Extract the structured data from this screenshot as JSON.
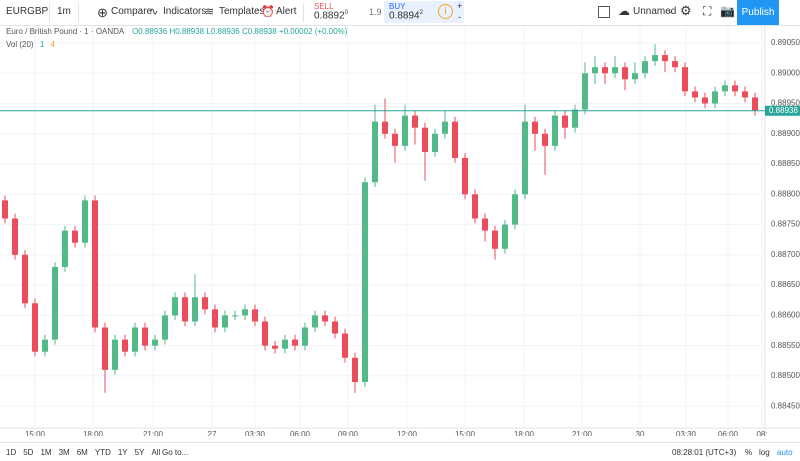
{
  "toolbar": {
    "symbol": "EURGBP",
    "interval": "1m",
    "compare": "Compare",
    "indicators": "Indicators",
    "templates": "Templates",
    "alert": "Alert",
    "sell_label": "SELL",
    "sell_price": "0.8892",
    "sell_sup": "0",
    "spread": "1.9",
    "buy_label": "BUY",
    "buy_price": "0.8894",
    "buy_sup": "2",
    "layout_name": "Unnamed",
    "publish": "Publish"
  },
  "legend": {
    "title": "Euro / British Pound · 1 · OANDA",
    "open": "O0.88936",
    "high": "H0.88938",
    "low": "L0.88936",
    "close": "C0.88938",
    "change": "+0.00002 (+0.00%)",
    "volume_label": "Vol (20)",
    "vol_a": "1",
    "vol_b": "4"
  },
  "footer": {
    "ranges": [
      "1D",
      "5D",
      "1M",
      "3M",
      "6M",
      "YTD",
      "1Y",
      "5Y",
      "All"
    ],
    "goto": "Go to...",
    "clock": "08:28:01 (UTC+3)",
    "percent": "%",
    "log": "log",
    "auto": "auto"
  },
  "chart_data": {
    "type": "candlestick",
    "up_color": "#53b987",
    "down_color": "#eb4d5c",
    "grid": true,
    "last_price": 0.88938,
    "last_color": "#26a69a",
    "ylim": [
      0.88414,
      0.89078
    ],
    "yticks": [
      {
        "value": 0.8845,
        "label": "0.88450"
      },
      {
        "value": 0.885,
        "label": "0.88500"
      },
      {
        "value": 0.8855,
        "label": "0.88550"
      },
      {
        "value": 0.886,
        "label": "0.88600"
      },
      {
        "value": 0.8865,
        "label": "0.88650"
      },
      {
        "value": 0.887,
        "label": "0.88700"
      },
      {
        "value": 0.8875,
        "label": "0.88750"
      },
      {
        "value": 0.888,
        "label": "0.88800"
      },
      {
        "value": 0.8885,
        "label": "0.88850"
      },
      {
        "value": 0.889,
        "label": "0.88900"
      },
      {
        "value": 0.8895,
        "label": "0.88950"
      },
      {
        "value": 0.89,
        "label": "0.89000"
      },
      {
        "value": 0.8905,
        "label": "0.89050"
      }
    ],
    "xlim": [
      -0.5,
      76
    ],
    "xticks": [
      {
        "value": 3,
        "label": "15:00"
      },
      {
        "value": 8.8,
        "label": "18:00"
      },
      {
        "value": 14.8,
        "label": "21:00"
      },
      {
        "value": 20.7,
        "label": "27"
      },
      {
        "value": 25,
        "label": "03:30"
      },
      {
        "value": 29.5,
        "label": "06:00"
      },
      {
        "value": 34.3,
        "label": "09:00"
      },
      {
        "value": 40.2,
        "label": "12:00"
      },
      {
        "value": 46,
        "label": "15:00"
      },
      {
        "value": 51.9,
        "label": "18:00"
      },
      {
        "value": 57.7,
        "label": "21:00"
      },
      {
        "value": 63.5,
        "label": "30"
      },
      {
        "value": 68.1,
        "label": "03:30"
      },
      {
        "value": 72.3,
        "label": "06:00"
      },
      {
        "value": 75.7,
        "label": "08:"
      }
    ],
    "candles": [
      [
        0.8879,
        0.88798,
        0.88752,
        0.8876
      ],
      [
        0.8876,
        0.88768,
        0.88692,
        0.887
      ],
      [
        0.887,
        0.88708,
        0.88612,
        0.8862
      ],
      [
        0.8862,
        0.88628,
        0.88532,
        0.8854
      ],
      [
        0.8854,
        0.88568,
        0.88532,
        0.8856
      ],
      [
        0.8856,
        0.88688,
        0.88552,
        0.8868
      ],
      [
        0.8868,
        0.88748,
        0.88672,
        0.8874
      ],
      [
        0.8874,
        0.88748,
        0.88712,
        0.8872
      ],
      [
        0.8872,
        0.88798,
        0.88712,
        0.8879
      ],
      [
        0.8879,
        0.88798,
        0.88572,
        0.8858
      ],
      [
        0.8858,
        0.88588,
        0.88472,
        0.8851
      ],
      [
        0.8851,
        0.88568,
        0.88502,
        0.8856
      ],
      [
        0.8856,
        0.88568,
        0.88532,
        0.8854
      ],
      [
        0.8854,
        0.88588,
        0.88532,
        0.8858
      ],
      [
        0.8858,
        0.88588,
        0.88542,
        0.8855
      ],
      [
        0.8855,
        0.88568,
        0.88542,
        0.8856
      ],
      [
        0.8856,
        0.88608,
        0.88552,
        0.886
      ],
      [
        0.886,
        0.88638,
        0.88592,
        0.8863
      ],
      [
        0.8863,
        0.88638,
        0.88582,
        0.8859
      ],
      [
        0.8859,
        0.88668,
        0.88582,
        0.8863
      ],
      [
        0.8863,
        0.88638,
        0.88602,
        0.8861
      ],
      [
        0.8861,
        0.88618,
        0.88572,
        0.8858
      ],
      [
        0.8858,
        0.88608,
        0.88572,
        0.886
      ],
      [
        0.886,
        0.88608,
        0.88592,
        0.886
      ],
      [
        0.886,
        0.88618,
        0.88592,
        0.8861
      ],
      [
        0.8861,
        0.88618,
        0.88582,
        0.8859
      ],
      [
        0.8859,
        0.88598,
        0.88542,
        0.8855
      ],
      [
        0.8855,
        0.88558,
        0.88537,
        0.88545
      ],
      [
        0.88545,
        0.88568,
        0.88537,
        0.8856
      ],
      [
        0.8856,
        0.88568,
        0.88542,
        0.8855
      ],
      [
        0.8855,
        0.88588,
        0.88542,
        0.8858
      ],
      [
        0.8858,
        0.88608,
        0.88572,
        0.886
      ],
      [
        0.886,
        0.88608,
        0.88582,
        0.8859
      ],
      [
        0.8859,
        0.88598,
        0.88562,
        0.8857
      ],
      [
        0.8857,
        0.88578,
        0.88522,
        0.8853
      ],
      [
        0.8853,
        0.88538,
        0.88472,
        0.8849
      ],
      [
        0.8849,
        0.88828,
        0.88482,
        0.8882
      ],
      [
        0.8882,
        0.88948,
        0.88812,
        0.8892
      ],
      [
        0.8892,
        0.88958,
        0.88892,
        0.889
      ],
      [
        0.889,
        0.88908,
        0.88852,
        0.8888
      ],
      [
        0.8888,
        0.88948,
        0.88872,
        0.8893
      ],
      [
        0.8893,
        0.88938,
        0.88882,
        0.8891
      ],
      [
        0.8891,
        0.88918,
        0.88822,
        0.8887
      ],
      [
        0.8887,
        0.88908,
        0.88862,
        0.889
      ],
      [
        0.889,
        0.88938,
        0.88892,
        0.8892
      ],
      [
        0.8892,
        0.88928,
        0.88852,
        0.8886
      ],
      [
        0.8886,
        0.88868,
        0.88792,
        0.888
      ],
      [
        0.888,
        0.88808,
        0.88752,
        0.8876
      ],
      [
        0.8876,
        0.88768,
        0.88722,
        0.8874
      ],
      [
        0.8874,
        0.88748,
        0.88692,
        0.8871
      ],
      [
        0.8871,
        0.88758,
        0.88702,
        0.8875
      ],
      [
        0.8875,
        0.88808,
        0.88742,
        0.888
      ],
      [
        0.888,
        0.88948,
        0.88792,
        0.8892
      ],
      [
        0.8892,
        0.88928,
        0.88872,
        0.889
      ],
      [
        0.889,
        0.88908,
        0.88832,
        0.8888
      ],
      [
        0.8888,
        0.88938,
        0.88872,
        0.8893
      ],
      [
        0.8893,
        0.88938,
        0.88892,
        0.8891
      ],
      [
        0.8891,
        0.88948,
        0.88902,
        0.8894
      ],
      [
        0.8894,
        0.89018,
        0.88932,
        0.89
      ],
      [
        0.89,
        0.89028,
        0.88982,
        0.8901
      ],
      [
        0.8901,
        0.89018,
        0.88982,
        0.89
      ],
      [
        0.89,
        0.89028,
        0.88992,
        0.8901
      ],
      [
        0.8901,
        0.89018,
        0.88972,
        0.8899
      ],
      [
        0.8899,
        0.89018,
        0.88982,
        0.89
      ],
      [
        0.89,
        0.89028,
        0.88992,
        0.8902
      ],
      [
        0.8902,
        0.89048,
        0.89012,
        0.8903
      ],
      [
        0.8903,
        0.89038,
        0.89002,
        0.8902
      ],
      [
        0.8902,
        0.89028,
        0.89002,
        0.8901
      ],
      [
        0.8901,
        0.89018,
        0.88962,
        0.8897
      ],
      [
        0.8897,
        0.88978,
        0.88952,
        0.8896
      ],
      [
        0.8896,
        0.88968,
        0.88942,
        0.8895
      ],
      [
        0.8895,
        0.88978,
        0.88942,
        0.8897
      ],
      [
        0.8897,
        0.88988,
        0.88962,
        0.8898
      ],
      [
        0.8898,
        0.88988,
        0.88962,
        0.8897
      ],
      [
        0.8897,
        0.88978,
        0.88952,
        0.8896
      ],
      [
        0.8896,
        0.88968,
        0.8893,
        0.88938
      ]
    ]
  }
}
